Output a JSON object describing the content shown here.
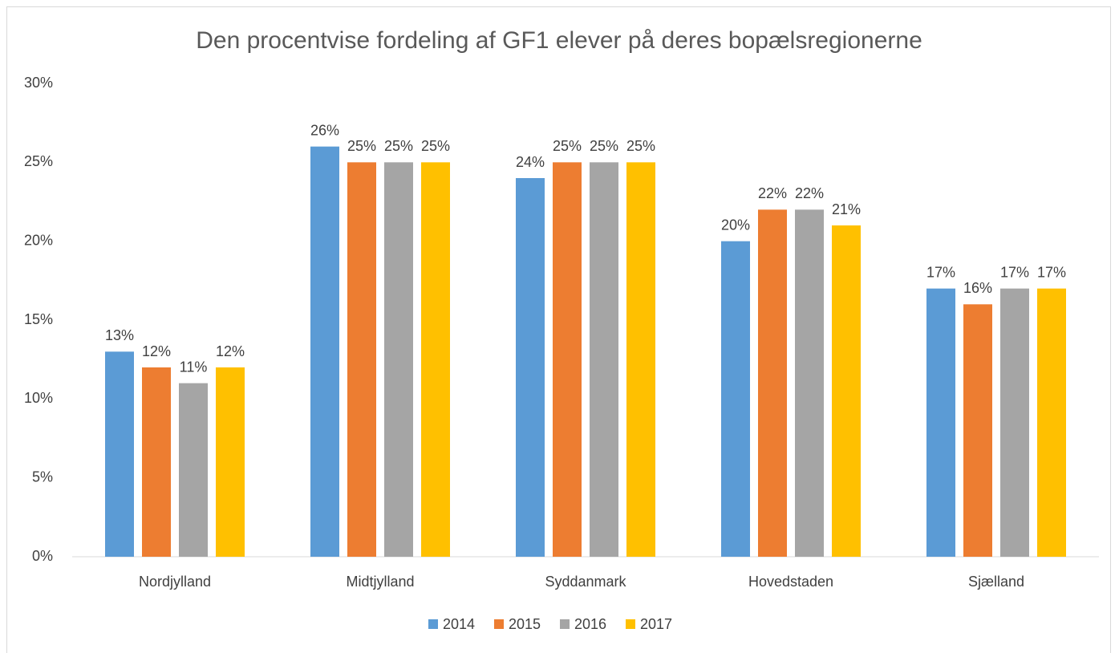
{
  "chart_data": {
    "type": "bar",
    "title": "Den procentvise fordeling af GF1 elever på deres bopælsregionerne",
    "categories": [
      "Nordjylland",
      "Midtjylland",
      "Syddanmark",
      "Hovedstaden",
      "Sjælland"
    ],
    "series": [
      {
        "name": "2014",
        "color": "#5b9bd5",
        "values": [
          13,
          26,
          24,
          20,
          17
        ],
        "value_labels": [
          "13%",
          "26%",
          "24%",
          "20%",
          "17%"
        ]
      },
      {
        "name": "2015",
        "color": "#ed7d31",
        "values": [
          12,
          25,
          25,
          22,
          16
        ],
        "value_labels": [
          "12%",
          "25%",
          "25%",
          "22%",
          "16%"
        ]
      },
      {
        "name": "2016",
        "color": "#a5a5a5",
        "values": [
          11,
          25,
          25,
          22,
          17
        ],
        "value_labels": [
          "11%",
          "25%",
          "25%",
          "22%",
          "17%"
        ]
      },
      {
        "name": "2017",
        "color": "#ffc000",
        "values": [
          12,
          25,
          25,
          21,
          17
        ],
        "value_labels": [
          "12%",
          "25%",
          "25%",
          "21%",
          "17%"
        ]
      }
    ],
    "ylim": [
      0,
      30
    ],
    "yticks": [
      {
        "value": 0,
        "label": "0%"
      },
      {
        "value": 5,
        "label": "5%"
      },
      {
        "value": 10,
        "label": "10%"
      },
      {
        "value": 15,
        "label": "15%"
      },
      {
        "value": 20,
        "label": "20%"
      },
      {
        "value": 25,
        "label": "25%"
      },
      {
        "value": 30,
        "label": "30%"
      }
    ],
    "grid": false,
    "legend": "bottom"
  }
}
